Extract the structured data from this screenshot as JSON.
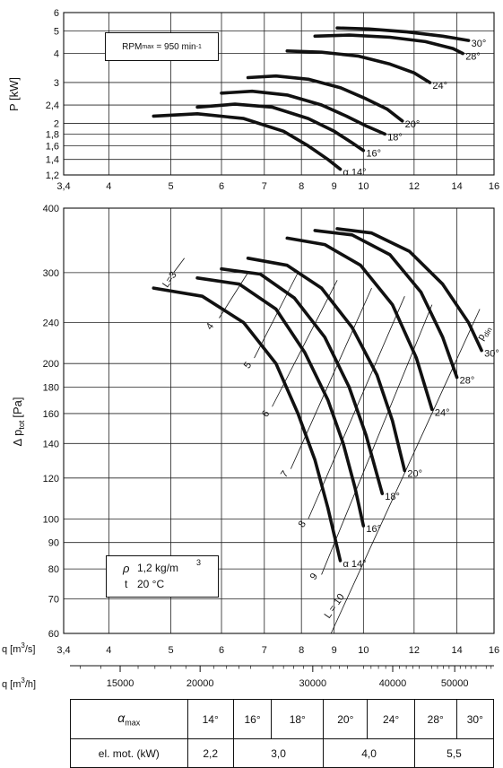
{
  "power_chart": {
    "ylabel": "P [kW]",
    "y_ticks": [
      "6",
      "5",
      "4",
      "3",
      "2,4",
      "2",
      "1,8",
      "1,6",
      "1,4",
      "1,2"
    ],
    "y_tick_values": [
      6,
      5,
      4,
      3,
      2.4,
      2,
      1.8,
      1.6,
      1.4,
      1.2
    ],
    "x_ticks": [
      "3,4",
      "4",
      "5",
      "6",
      "7",
      "8",
      "9",
      "10",
      "12",
      "14",
      "16"
    ],
    "x_tick_values": [
      3.4,
      4,
      5,
      6,
      7,
      8,
      9,
      10,
      12,
      14,
      16
    ],
    "rpm_label_prefix": "RPM",
    "rpm_label_sub": "max",
    "rpm_label_value": "= 950 min",
    "rpm_label_sup": "-1"
  },
  "pressure_chart": {
    "ylabel_prefix": "Δ p",
    "ylabel_sub": "tot",
    "ylabel_suffix": "[Pa]",
    "y_ticks": [
      "400",
      "300",
      "240",
      "200",
      "180",
      "160",
      "140",
      "120",
      "100",
      "90",
      "80",
      "70",
      "60"
    ],
    "y_tick_values": [
      400,
      300,
      240,
      200,
      180,
      160,
      140,
      120,
      100,
      90,
      80,
      70,
      60
    ],
    "pdin_prefix": "p",
    "pdin_sub": "din",
    "density_symbol": "ρ",
    "density_value": "1,2 kg/m",
    "density_sup": "3",
    "temp_symbol": "t",
    "temp_value": "20 °C",
    "l_labels": [
      "L=3",
      "4",
      "5",
      "6",
      "7",
      "8",
      "9",
      "L = 10"
    ]
  },
  "q_axis": {
    "m3s_label": "q [m",
    "m3s_sup": "3",
    "m3s_suffix": "/s]",
    "m3s_ticks": [
      "3,4",
      "4",
      "5",
      "6",
      "7",
      "8",
      "9",
      "10",
      "12",
      "14",
      "16"
    ],
    "m3h_label": "q [m",
    "m3h_sup": "3",
    "m3h_suffix": "/h]",
    "m3h_ticks": [
      "15000",
      "20000",
      "30000",
      "40000",
      "50000"
    ],
    "m3h_tick_values": [
      15000,
      20000,
      30000,
      40000,
      50000
    ]
  },
  "chart_data": [
    {
      "type": "line",
      "ylabel": "P [kW]",
      "xlabel": "q [m3/s]",
      "xscale": "log",
      "yscale": "log",
      "xlim": [
        3.4,
        16
      ],
      "ylim": [
        1.2,
        6
      ],
      "grid": true,
      "series": [
        {
          "name": "α 14°",
          "x": [
            4.7,
            5.5,
            6.5,
            7.5,
            8.2,
            8.8,
            9.2
          ],
          "y": [
            2.15,
            2.2,
            2.1,
            1.85,
            1.6,
            1.4,
            1.27
          ]
        },
        {
          "name": "16°",
          "x": [
            5.5,
            6.3,
            7.2,
            8.2,
            9.0,
            9.6,
            10.0
          ],
          "y": [
            2.35,
            2.42,
            2.35,
            2.1,
            1.85,
            1.65,
            1.53
          ]
        },
        {
          "name": "18°",
          "x": [
            6.0,
            6.7,
            7.6,
            8.6,
            9.4,
            10.1,
            10.8
          ],
          "y": [
            2.7,
            2.75,
            2.65,
            2.4,
            2.15,
            1.95,
            1.8
          ]
        },
        {
          "name": "20°",
          "x": [
            6.6,
            7.3,
            8.2,
            9.2,
            10.1,
            10.9,
            11.5
          ],
          "y": [
            3.15,
            3.2,
            3.1,
            2.85,
            2.55,
            2.3,
            2.05
          ]
        },
        {
          "name": "24°",
          "x": [
            7.6,
            8.6,
            9.8,
            11.0,
            12.0,
            12.7
          ],
          "y": [
            4.1,
            4.05,
            3.9,
            3.6,
            3.3,
            3.0
          ]
        },
        {
          "name": "28°",
          "x": [
            8.4,
            9.5,
            11.0,
            12.5,
            13.8,
            14.3
          ],
          "y": [
            4.75,
            4.8,
            4.7,
            4.5,
            4.2,
            4.0
          ]
        },
        {
          "name": "30°",
          "x": [
            9.1,
            10.2,
            11.7,
            13.3,
            14.6
          ],
          "y": [
            5.15,
            5.1,
            4.95,
            4.75,
            4.55
          ]
        }
      ]
    },
    {
      "type": "line",
      "ylabel": "Δ ptot [Pa]",
      "xlabel": "q [m3/s]",
      "xscale": "log",
      "yscale": "log",
      "xlim": [
        3.4,
        16
      ],
      "ylim": [
        60,
        400
      ],
      "grid": true,
      "series": [
        {
          "name": "α 14°",
          "x": [
            4.7,
            5.6,
            6.5,
            7.3,
            7.9,
            8.4,
            8.8,
            9.2
          ],
          "y": [
            280,
            270,
            240,
            200,
            160,
            130,
            105,
            83
          ]
        },
        {
          "name": "16°",
          "x": [
            5.5,
            6.4,
            7.3,
            8.1,
            8.8,
            9.3,
            9.7,
            10.0
          ],
          "y": [
            293,
            285,
            255,
            210,
            170,
            140,
            115,
            97
          ]
        },
        {
          "name": "18°",
          "x": [
            6.0,
            6.9,
            7.8,
            8.7,
            9.5,
            10.1,
            10.7
          ],
          "y": [
            305,
            298,
            268,
            225,
            180,
            145,
            112
          ]
        },
        {
          "name": "20°",
          "x": [
            6.6,
            7.6,
            8.6,
            9.6,
            10.5,
            11.1,
            11.6
          ],
          "y": [
            320,
            310,
            280,
            235,
            190,
            155,
            124
          ]
        },
        {
          "name": "24°",
          "x": [
            7.6,
            8.7,
            9.9,
            11.1,
            12.1,
            12.8
          ],
          "y": [
            350,
            340,
            310,
            260,
            205,
            163
          ]
        },
        {
          "name": "28°",
          "x": [
            8.4,
            9.6,
            11.0,
            12.3,
            13.3,
            14.0
          ],
          "y": [
            362,
            355,
            325,
            275,
            225,
            188
          ]
        },
        {
          "name": "30°",
          "x": [
            9.1,
            10.3,
            11.8,
            13.3,
            14.6,
            15.3
          ],
          "y": [
            365,
            358,
            330,
            285,
            240,
            212
          ]
        }
      ]
    }
  ],
  "selection_table": {
    "alpha_label": "α",
    "alpha_sub": "max",
    "angles": [
      "14°",
      "16°",
      "18°",
      "20°",
      "24°",
      "28°",
      "30°"
    ],
    "motor_label": "el. mot. (kW)",
    "motors": [
      "2,2",
      "3,0",
      "4,0",
      "5,5"
    ]
  }
}
